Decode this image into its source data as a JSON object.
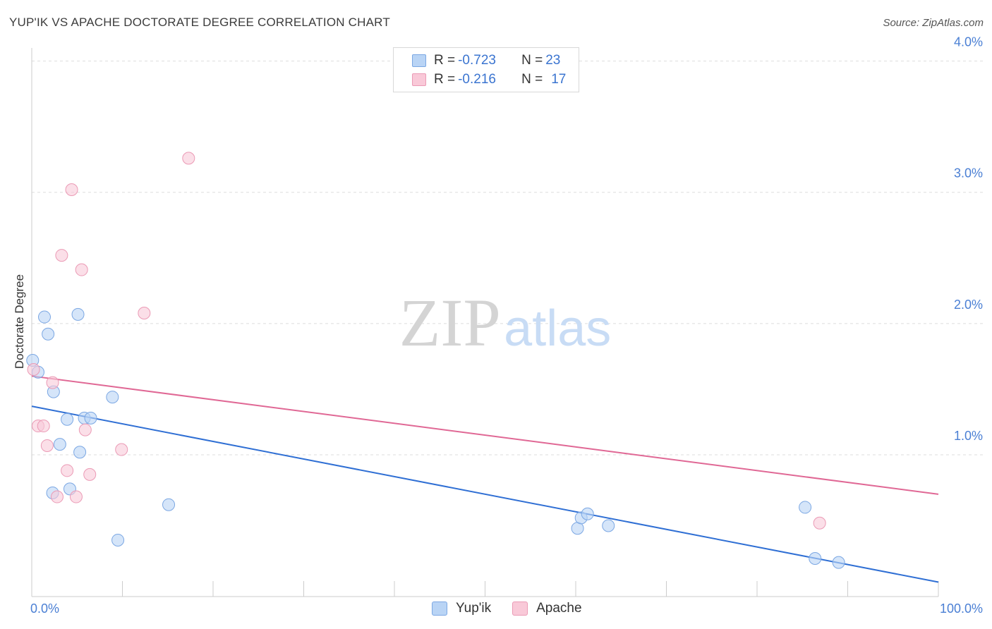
{
  "header": {
    "title": "YUP'IK VS APACHE DOCTORATE DEGREE CORRELATION CHART",
    "source": "Source: ZipAtlas.com"
  },
  "watermark": {
    "zip": "ZIP",
    "atlas": "atlas"
  },
  "legend": {
    "rows": [
      {
        "r_label": "R = ",
        "r_value": "-0.723",
        "n_label": "N = ",
        "n_value": "23"
      },
      {
        "r_label": "R = ",
        "r_value": "-0.216",
        "n_label": "N = ",
        "n_value": "17"
      }
    ]
  },
  "colors": {
    "yupik_fill": "#b9d4f5",
    "yupik_stroke": "#7ba7e3",
    "yupik_line": "#2f6fd4",
    "apache_fill": "#f9c9d8",
    "apache_stroke": "#eb9ab5",
    "apache_line": "#e06895",
    "grid": "#dddddd",
    "axis_text": "#4a7fd4"
  },
  "chart_data": {
    "type": "scatter",
    "title": "YUP'IK VS APACHE DOCTORATE DEGREE CORRELATION CHART",
    "xlabel": "",
    "ylabel": "Doctorate Degree",
    "xlim": [
      0,
      100
    ],
    "ylim": [
      -0.08,
      4.1
    ],
    "x_tick_labels": [
      "0.0%",
      "100.0%"
    ],
    "y_ticks": [
      1.0,
      2.0,
      3.0,
      4.0
    ],
    "y_tick_labels": [
      "1.0%",
      "2.0%",
      "3.0%",
      "4.0%"
    ],
    "grid": true,
    "legend_position": "bottom",
    "series": [
      {
        "name": "Yup'ik",
        "r": -0.723,
        "n": 23,
        "points": [
          [
            0.1,
            1.72
          ],
          [
            0.7,
            1.63
          ],
          [
            1.4,
            2.05
          ],
          [
            1.8,
            1.92
          ],
          [
            2.4,
            1.48
          ],
          [
            3.1,
            1.08
          ],
          [
            3.9,
            1.27
          ],
          [
            5.1,
            2.07
          ],
          [
            5.3,
            1.02
          ],
          [
            5.8,
            1.28
          ],
          [
            6.5,
            1.28
          ],
          [
            8.9,
            1.44
          ],
          [
            9.5,
            0.35
          ],
          [
            15.1,
            0.62
          ],
          [
            2.3,
            0.71
          ],
          [
            4.2,
            0.74
          ],
          [
            60.2,
            0.44
          ],
          [
            60.6,
            0.52
          ],
          [
            61.3,
            0.55
          ],
          [
            63.6,
            0.46
          ],
          [
            85.3,
            0.6
          ],
          [
            86.4,
            0.21
          ],
          [
            89.0,
            0.18
          ]
        ],
        "trend": {
          "x": [
            0,
            100
          ],
          "y": [
            1.37,
            0.03
          ]
        }
      },
      {
        "name": "Apache",
        "r": -0.216,
        "n": 17,
        "points": [
          [
            0.2,
            1.65
          ],
          [
            0.7,
            1.22
          ],
          [
            1.3,
            1.22
          ],
          [
            1.7,
            1.07
          ],
          [
            2.3,
            1.55
          ],
          [
            2.8,
            0.68
          ],
          [
            3.3,
            2.52
          ],
          [
            3.9,
            0.88
          ],
          [
            4.4,
            3.02
          ],
          [
            4.9,
            0.68
          ],
          [
            5.5,
            2.41
          ],
          [
            5.9,
            1.19
          ],
          [
            6.4,
            0.85
          ],
          [
            9.9,
            1.04
          ],
          [
            12.4,
            2.08
          ],
          [
            17.3,
            3.26
          ],
          [
            86.9,
            0.48
          ]
        ],
        "trend": {
          "x": [
            0,
            100
          ],
          "y": [
            1.6,
            0.7
          ]
        }
      }
    ]
  }
}
